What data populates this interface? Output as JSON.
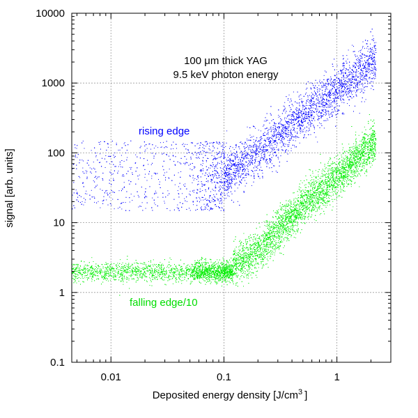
{
  "chart_data": {
    "type": "scatter",
    "title": "",
    "annotation": {
      "line1": "100 μm thick YAG",
      "line2": "9.5 keV photon energy"
    },
    "xlabel": {
      "main": "Deposited energy density [J/cm",
      "sup": "3",
      "end": "]"
    },
    "ylabel": "signal [arb. units]",
    "xscale": "log",
    "yscale": "log",
    "xlim": [
      0.0045,
      3.0
    ],
    "ylim": [
      0.1,
      10000
    ],
    "grid": true,
    "x_ticks": [
      {
        "value": 0.01,
        "label": "0.01"
      },
      {
        "value": 0.1,
        "label": "0.1"
      },
      {
        "value": 1,
        "label": "1"
      }
    ],
    "y_ticks": [
      {
        "value": 0.1,
        "label": "0.1"
      },
      {
        "value": 1,
        "label": "1"
      },
      {
        "value": 10,
        "label": "10"
      },
      {
        "value": 100,
        "label": "100"
      },
      {
        "value": 1000,
        "label": "1000"
      },
      {
        "value": 10000,
        "label": "10000"
      }
    ],
    "series": [
      {
        "name": "rising edge",
        "color": "#0000ff",
        "description_model": "low-density noise floor ~20-120, then power-law rise",
        "floor_range": [
          15,
          150
        ],
        "knee_x": 0.2,
        "points_at": [
          {
            "x": 0.1,
            "y": 50
          },
          {
            "x": 0.2,
            "y": 100
          },
          {
            "x": 0.5,
            "y": 350
          },
          {
            "x": 1.0,
            "y": 800
          },
          {
            "x": 2.0,
            "y": 2000
          }
        ]
      },
      {
        "name": "falling edge/10",
        "color": "#00ee00",
        "description_model": "flat floor ~1.5-3 at low density, then power-law rise",
        "floor_range": [
          1.2,
          3.5
        ],
        "knee_x": 0.2,
        "points_at": [
          {
            "x": 0.1,
            "y": 2.2
          },
          {
            "x": 0.2,
            "y": 4
          },
          {
            "x": 0.5,
            "y": 18
          },
          {
            "x": 1.0,
            "y": 45
          },
          {
            "x": 2.0,
            "y": 130
          }
        ]
      }
    ]
  }
}
